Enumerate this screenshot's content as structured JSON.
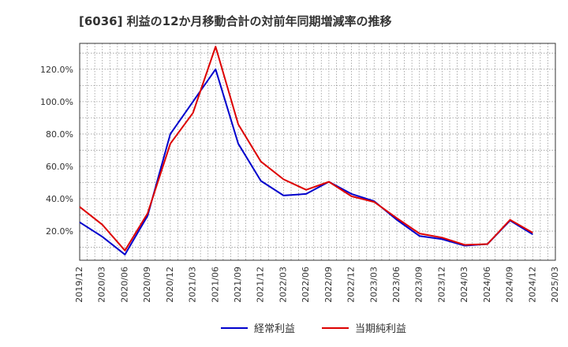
{
  "chart_data": {
    "type": "line",
    "title": "[6036]  利益の12か月移動合計の対前年同期増減率の推移",
    "xlabel": "",
    "ylabel": "",
    "ylim": [
      2,
      136
    ],
    "yticks": [
      20,
      40,
      60,
      80,
      100,
      120
    ],
    "ytick_labels": [
      "20.0%",
      "40.0%",
      "60.0%",
      "80.0%",
      "100.0%",
      "120.0%"
    ],
    "x_labels": [
      "2019/12",
      "2020/03",
      "2020/06",
      "2020/09",
      "2020/12",
      "2021/03",
      "2021/06",
      "2021/09",
      "2021/12",
      "2022/03",
      "2022/06",
      "2022/09",
      "2022/12",
      "2023/03",
      "2023/06",
      "2023/09",
      "2023/12",
      "2024/03",
      "2024/06",
      "2024/09",
      "2024/12",
      "2025/03"
    ],
    "grid": true,
    "legend_position": "bottom",
    "series": [
      {
        "name": "経常利益",
        "color": "#0000cc",
        "values": [
          25.5,
          16.5,
          5.5,
          29.5,
          80,
          100,
          120,
          74,
          51,
          42,
          43,
          50.5,
          43,
          38.5,
          27,
          17,
          15,
          11,
          12,
          26.5,
          18,
          null
        ]
      },
      {
        "name": "当期純利益",
        "color": "#dd0000",
        "values": [
          35,
          24,
          8,
          31,
          74,
          93,
          134,
          86,
          63,
          52,
          45.5,
          50.5,
          41.5,
          38,
          28,
          18.5,
          16,
          11.5,
          12,
          27,
          19,
          null
        ]
      }
    ]
  }
}
